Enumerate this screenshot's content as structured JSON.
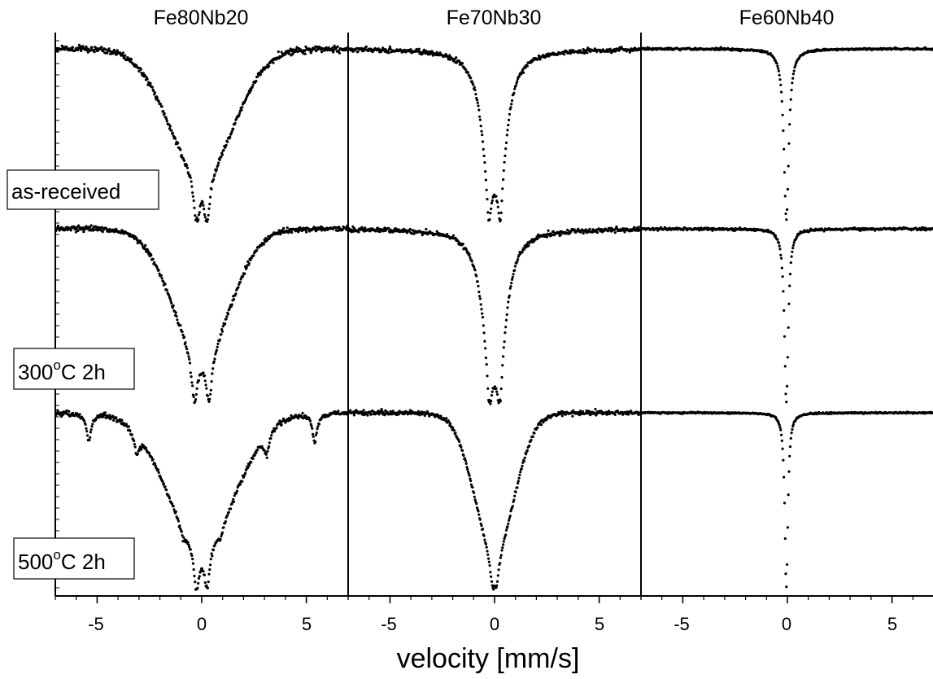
{
  "chart_data": {
    "type": "scatter",
    "xlabel": "velocity [mm/s]",
    "xlim": [
      -7,
      7
    ],
    "x_ticks": [
      "-5",
      "0",
      "5"
    ],
    "columns": [
      "Fe80Nb20",
      "Fe70Nb30",
      "Fe60Nb40"
    ],
    "rows": [
      {
        "label_main": "as-received",
        "label_sup": "",
        "label_tail": ""
      },
      {
        "label_main": "300",
        "label_sup": "o",
        "label_tail": "C 2h"
      },
      {
        "label_main": "500",
        "label_sup": "o",
        "label_tail": "C 2h"
      }
    ],
    "panels": [
      {
        "column": "Fe80Nb20",
        "row": "as-received",
        "shape": "broad",
        "depth": 0.82,
        "width": 2.6,
        "doublet_split": 0.5,
        "baseline_range": [
          -7,
          7
        ],
        "noise": 0.025
      },
      {
        "column": "Fe70Nb30",
        "row": "as-received",
        "shape": "doublet",
        "depth": 0.88,
        "width": 0.9,
        "doublet_split": 0.55,
        "noise": 0.018
      },
      {
        "column": "Fe60Nb40",
        "row": "as-received",
        "shape": "singlet",
        "depth": 0.9,
        "width": 0.28,
        "doublet_split": 0,
        "noise": 0.008
      },
      {
        "column": "Fe80Nb20",
        "row": "300°C 2h",
        "shape": "broad",
        "depth": 0.9,
        "width": 2.3,
        "doublet_split": 0.7,
        "noise": 0.022
      },
      {
        "column": "Fe70Nb30",
        "row": "300°C 2h",
        "shape": "doublet",
        "depth": 0.95,
        "width": 0.9,
        "doublet_split": 0.5,
        "noise": 0.018
      },
      {
        "column": "Fe60Nb40",
        "row": "300°C 2h",
        "shape": "singlet",
        "depth": 0.95,
        "width": 0.22,
        "doublet_split": 0,
        "noise": 0.01
      },
      {
        "column": "Fe80Nb20",
        "row": "500°C 2h",
        "shape": "sextet+broad",
        "depth": 0.92,
        "width": 2.0,
        "doublet_split": 0.5,
        "sextet_lines": [
          -5.4,
          -3.1,
          -0.9,
          0.9,
          3.1,
          5.4
        ],
        "noise": 0.02
      },
      {
        "column": "Fe70Nb30",
        "row": "500°C 2h",
        "shape": "singlet-broad",
        "depth": 0.95,
        "width": 1.1,
        "doublet_split": 0.2,
        "noise": 0.018
      },
      {
        "column": "Fe60Nb40",
        "row": "500°C 2h",
        "shape": "singlet",
        "depth": 0.98,
        "width": 0.18,
        "doublet_split": 0,
        "noise": 0.006
      }
    ]
  }
}
